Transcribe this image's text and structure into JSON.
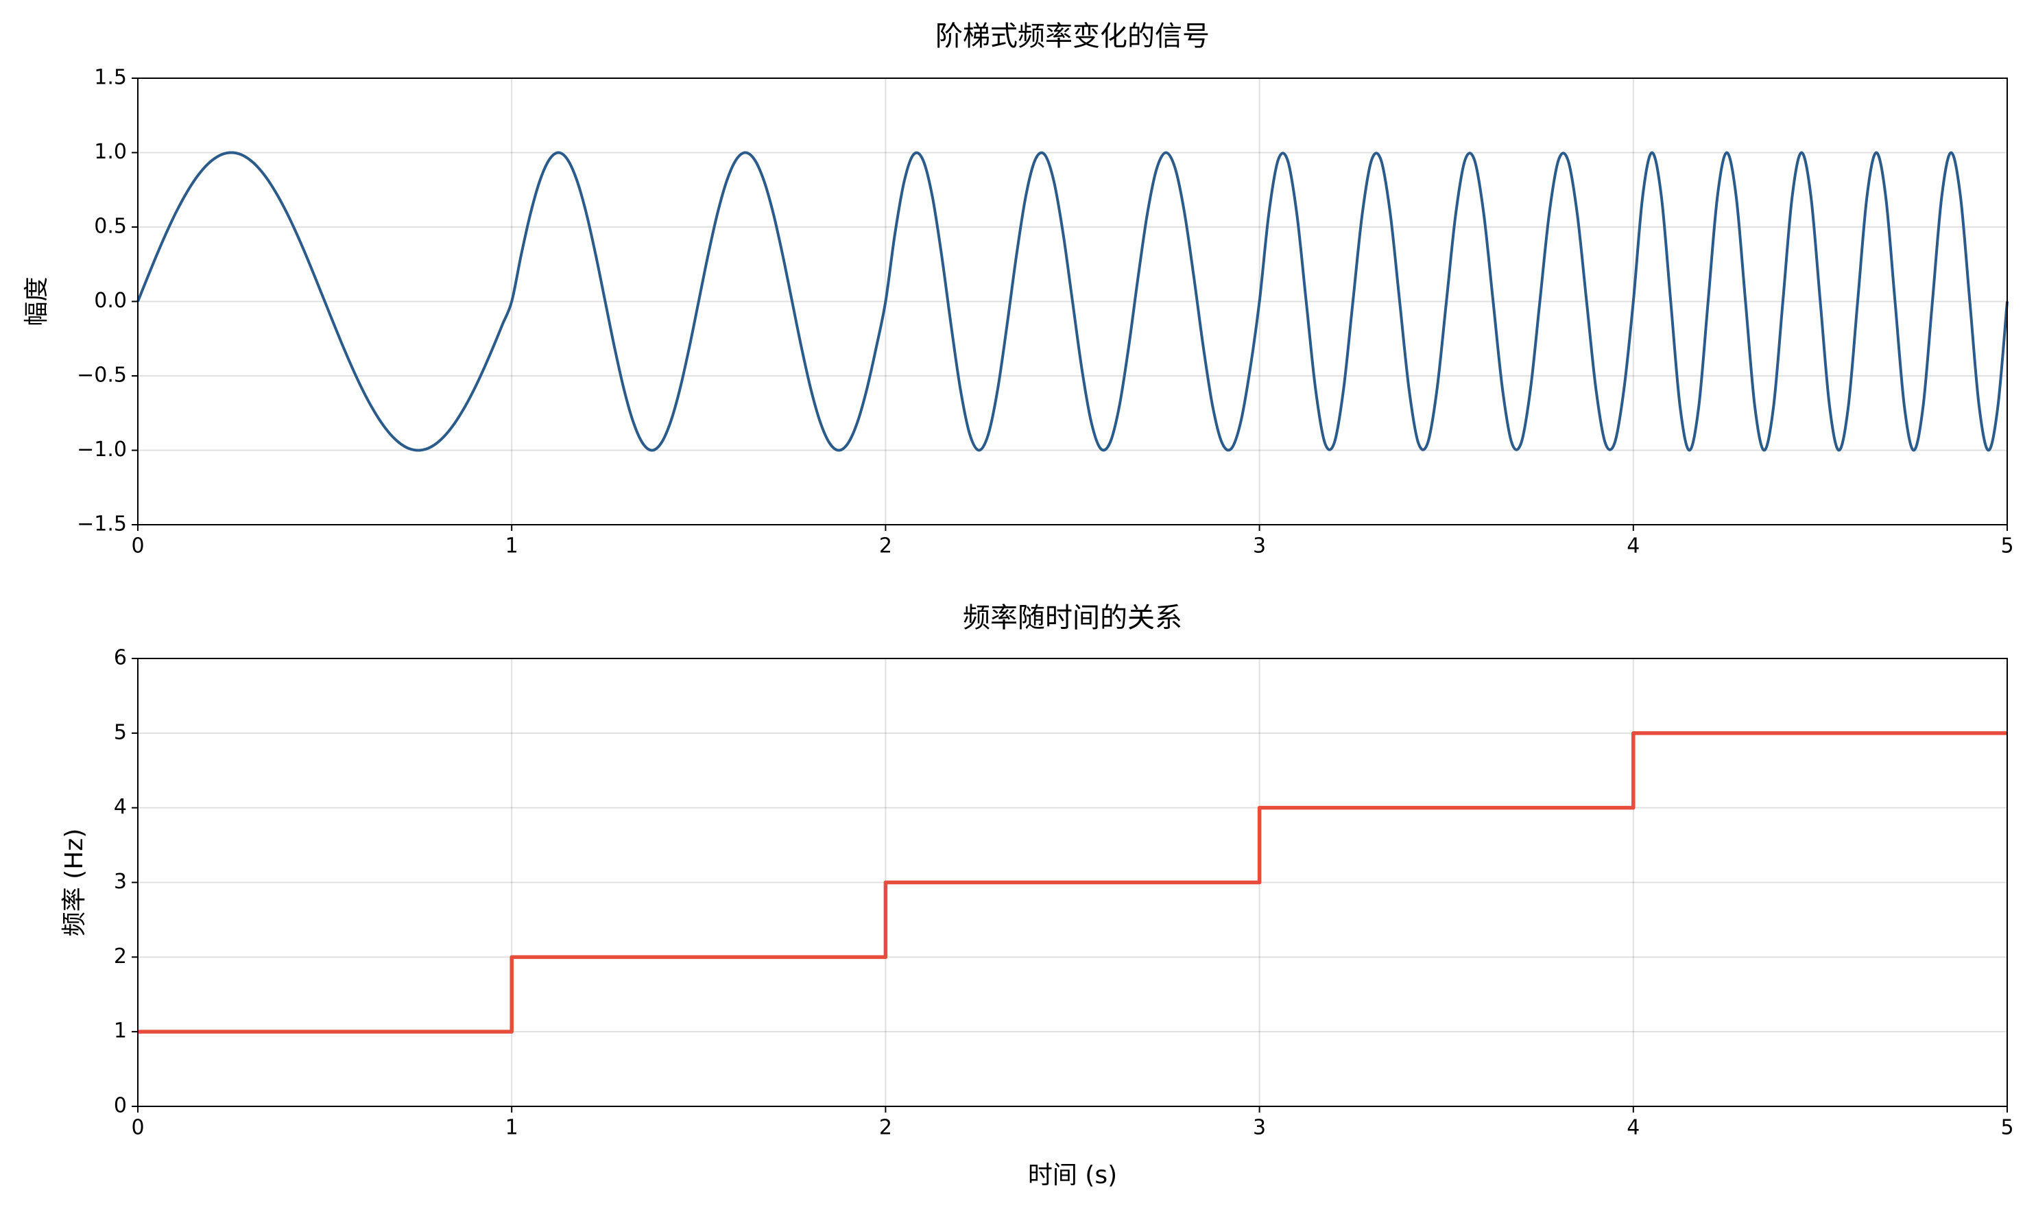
{
  "chart_data": [
    {
      "type": "line",
      "title": "阶梯式频率变化的信号",
      "ylabel": "幅度",
      "color": "#2b5b8a",
      "grid": true,
      "xlim": [
        0,
        5
      ],
      "xticks": [
        0,
        1,
        2,
        3,
        4,
        5
      ],
      "ylim": [
        -1.5,
        1.5
      ],
      "yticks": [
        {
          "value": -1.5,
          "label": "−1.5"
        },
        {
          "value": -1.0,
          "label": "−1.0"
        },
        {
          "value": -0.5,
          "label": "−0.5"
        },
        {
          "value": 0.0,
          "label": "0.0"
        },
        0.5,
        {
          "value": 1.0,
          "label": "1.0"
        },
        1.5
      ],
      "x": [
        0,
        0.025,
        0.05,
        0.075,
        0.1,
        0.125,
        0.15,
        0.175,
        0.2,
        0.225,
        0.25,
        0.275,
        0.3,
        0.325,
        0.35,
        0.375,
        0.4,
        0.425,
        0.45,
        0.475,
        0.5,
        0.525,
        0.55,
        0.575,
        0.6,
        0.625,
        0.65,
        0.675,
        0.7,
        0.725,
        0.75,
        0.775,
        0.8,
        0.825,
        0.85,
        0.875,
        0.9,
        0.925,
        0.95,
        0.975,
        1,
        1.025,
        1.05,
        1.075,
        1.1,
        1.125,
        1.15,
        1.175,
        1.2,
        1.225,
        1.25,
        1.275,
        1.3,
        1.325,
        1.35,
        1.375,
        1.4,
        1.425,
        1.45,
        1.475,
        1.5,
        1.525,
        1.55,
        1.575,
        1.6,
        1.625,
        1.65,
        1.675,
        1.7,
        1.725,
        1.75,
        1.775,
        1.8,
        1.825,
        1.85,
        1.875,
        1.9,
        1.925,
        1.95,
        1.975,
        2,
        2.025,
        2.05,
        2.075,
        2.1,
        2.125,
        2.15,
        2.175,
        2.2,
        2.225,
        2.25,
        2.275,
        2.3,
        2.325,
        2.35,
        2.375,
        2.4,
        2.425,
        2.45,
        2.475,
        2.5,
        2.525,
        2.55,
        2.575,
        2.6,
        2.625,
        2.65,
        2.675,
        2.7,
        2.725,
        2.75,
        2.775,
        2.8,
        2.825,
        2.85,
        2.875,
        2.9,
        2.925,
        2.95,
        2.975,
        3,
        3.025,
        3.05,
        3.075,
        3.1,
        3.125,
        3.15,
        3.175,
        3.2,
        3.225,
        3.25,
        3.275,
        3.3,
        3.325,
        3.35,
        3.375,
        3.4,
        3.425,
        3.45,
        3.475,
        3.5,
        3.525,
        3.55,
        3.575,
        3.6,
        3.625,
        3.65,
        3.675,
        3.7,
        3.725,
        3.75,
        3.775,
        3.8,
        3.825,
        3.85,
        3.875,
        3.9,
        3.925,
        3.95,
        3.975,
        4,
        4.025,
        4.05,
        4.075,
        4.1,
        4.125,
        4.15,
        4.175,
        4.2,
        4.225,
        4.25,
        4.275,
        4.3,
        4.325,
        4.35,
        4.375,
        4.4,
        4.425,
        4.45,
        4.475,
        4.5,
        4.525,
        4.55,
        4.575,
        4.6,
        4.625,
        4.65,
        4.675,
        4.7,
        4.725,
        4.75,
        4.775,
        4.8,
        4.825,
        4.85,
        4.875,
        4.9,
        4.925,
        4.95,
        4.975,
        5
      ],
      "values": [
        0,
        0.156,
        0.309,
        0.454,
        0.588,
        0.707,
        0.809,
        0.891,
        0.951,
        0.988,
        1,
        0.988,
        0.951,
        0.891,
        0.809,
        0.707,
        0.588,
        0.454,
        0.309,
        0.156,
        0,
        -0.156,
        -0.309,
        -0.454,
        -0.588,
        -0.707,
        -0.809,
        -0.891,
        -0.951,
        -0.988,
        -1,
        -0.988,
        -0.951,
        -0.891,
        -0.809,
        -0.707,
        -0.588,
        -0.454,
        -0.309,
        -0.156,
        0,
        0.309,
        0.588,
        0.809,
        0.951,
        1,
        0.951,
        0.809,
        0.588,
        0.309,
        0,
        -0.309,
        -0.588,
        -0.809,
        -0.951,
        -1,
        -0.951,
        -0.809,
        -0.588,
        -0.309,
        0,
        0.309,
        0.588,
        0.809,
        0.951,
        1,
        0.951,
        0.809,
        0.588,
        0.309,
        0,
        -0.309,
        -0.588,
        -0.809,
        -0.951,
        -1,
        -0.951,
        -0.809,
        -0.588,
        -0.309,
        0,
        0.454,
        0.809,
        0.988,
        0.951,
        0.707,
        0.309,
        -0.156,
        -0.588,
        -0.891,
        -1,
        -0.891,
        -0.588,
        -0.156,
        0.309,
        0.707,
        0.951,
        0.988,
        0.809,
        0.454,
        0,
        -0.454,
        -0.809,
        -0.988,
        -0.951,
        -0.707,
        -0.309,
        0.156,
        0.588,
        0.891,
        1,
        0.891,
        0.588,
        0.156,
        -0.309,
        -0.707,
        -0.951,
        -0.988,
        -0.809,
        -0.454,
        0,
        0.588,
        0.951,
        0.951,
        0.588,
        0,
        -0.588,
        -0.951,
        -0.951,
        -0.588,
        0,
        0.588,
        0.951,
        0.951,
        0.588,
        0,
        -0.588,
        -0.951,
        -0.951,
        -0.588,
        0,
        0.588,
        0.951,
        0.951,
        0.588,
        0,
        -0.588,
        -0.951,
        -0.951,
        -0.588,
        0,
        0.588,
        0.951,
        0.951,
        0.588,
        0,
        -0.588,
        -0.951,
        -0.951,
        -0.588,
        0,
        0.707,
        1,
        0.707,
        0,
        -0.707,
        -1,
        -0.707,
        0,
        0.707,
        1,
        0.707,
        0,
        -0.707,
        -1,
        -0.707,
        0,
        0.707,
        1,
        0.707,
        0,
        -0.707,
        -1,
        -0.707,
        0,
        0.707,
        1,
        0.707,
        0,
        -0.707,
        -1,
        -0.707,
        0,
        0.707,
        1,
        0.707,
        0,
        -0.707,
        -1,
        -0.707,
        0
      ]
    },
    {
      "type": "step",
      "where": "post",
      "title": "频率随时间的关系",
      "xlabel": "时间 (s)",
      "ylabel": "频率 (Hz)",
      "color": "#e74c3c",
      "grid": true,
      "xlim": [
        0,
        5
      ],
      "xticks": [
        0,
        1,
        2,
        3,
        4,
        5
      ],
      "ylim": [
        0,
        6
      ],
      "yticks": [
        0,
        1,
        2,
        3,
        4,
        5,
        6
      ],
      "x": [
        0,
        1,
        2,
        3,
        4,
        5
      ],
      "values": [
        1,
        2,
        3,
        4,
        5,
        5
      ]
    }
  ]
}
